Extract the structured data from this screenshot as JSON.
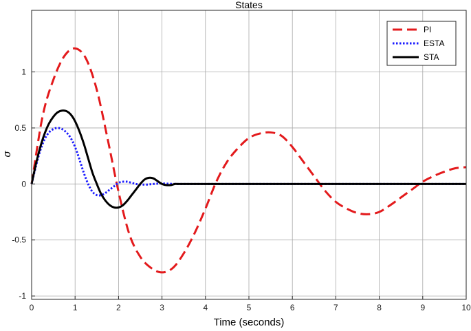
{
  "chart_data": {
    "type": "line",
    "title": "States",
    "xlabel": "Time (seconds)",
    "ylabel": "σ",
    "xlim": [
      0,
      10
    ],
    "ylim": [
      -1.03,
      1.55
    ],
    "xticks": [
      0,
      1,
      2,
      3,
      4,
      5,
      6,
      7,
      8,
      9,
      10
    ],
    "yticks": [
      -1,
      -0.5,
      0,
      0.5,
      1
    ],
    "xtick_labels": [
      "0",
      "1",
      "2",
      "3",
      "4",
      "5",
      "6",
      "7",
      "8",
      "9",
      "10"
    ],
    "ytick_labels": [
      "-1",
      "-0.5",
      "0",
      "0.5",
      "1"
    ],
    "grid": true,
    "legend_position": "top-right",
    "series": [
      {
        "name": "PI",
        "color": "#e31a1c",
        "style": "dashed",
        "x": [
          0,
          0.25,
          0.5,
          0.75,
          1.0,
          1.25,
          1.5,
          1.75,
          2.0,
          2.25,
          2.5,
          2.75,
          3.0,
          3.25,
          3.5,
          3.75,
          4.0,
          4.25,
          4.5,
          4.75,
          5.0,
          5.25,
          5.5,
          5.75,
          6.0,
          6.25,
          6.5,
          6.75,
          7.0,
          7.25,
          7.5,
          7.75,
          8.0,
          8.25,
          8.5,
          8.75,
          9.0,
          9.25,
          9.5,
          9.75,
          10.0
        ],
        "y": [
          0,
          0.6,
          0.93,
          1.14,
          1.21,
          1.12,
          0.84,
          0.4,
          -0.07,
          -0.45,
          -0.65,
          -0.75,
          -0.79,
          -0.75,
          -0.62,
          -0.44,
          -0.22,
          0.02,
          0.2,
          0.32,
          0.41,
          0.45,
          0.46,
          0.43,
          0.33,
          0.2,
          0.07,
          -0.06,
          -0.16,
          -0.22,
          -0.26,
          -0.27,
          -0.25,
          -0.19,
          -0.12,
          -0.05,
          0.02,
          0.07,
          0.11,
          0.14,
          0.15
        ]
      },
      {
        "name": "ESTA",
        "color": "#1a1aff",
        "style": "dotted",
        "x": [
          0,
          0.1,
          0.2,
          0.3,
          0.4,
          0.5,
          0.6,
          0.7,
          0.8,
          0.9,
          1.0,
          1.1,
          1.2,
          1.3,
          1.4,
          1.5,
          1.6,
          1.7,
          1.8,
          1.9,
          2.0,
          2.1,
          2.2,
          2.3,
          2.4,
          2.5,
          2.6,
          2.7,
          2.8,
          2.9,
          3.0,
          3.1,
          3.2,
          3.3,
          3.4,
          4.0,
          6.0,
          8.0,
          10.0
        ],
        "y": [
          0,
          0.16,
          0.3,
          0.4,
          0.46,
          0.49,
          0.5,
          0.49,
          0.46,
          0.41,
          0.33,
          0.22,
          0.1,
          0.0,
          -0.07,
          -0.1,
          -0.1,
          -0.08,
          -0.05,
          -0.02,
          0.01,
          0.02,
          0.02,
          0.01,
          0.0,
          -0.005,
          -0.006,
          -0.004,
          0.0,
          0.003,
          0.004,
          0.003,
          0.001,
          0.0,
          0.0,
          0.0,
          0.0,
          0.0,
          0.0
        ]
      },
      {
        "name": "STA",
        "color": "#000000",
        "style": "solid",
        "x": [
          0,
          0.1,
          0.2,
          0.3,
          0.4,
          0.5,
          0.6,
          0.7,
          0.8,
          0.9,
          1.0,
          1.1,
          1.2,
          1.3,
          1.4,
          1.5,
          1.6,
          1.7,
          1.8,
          1.9,
          2.0,
          2.1,
          2.2,
          2.3,
          2.4,
          2.5,
          2.6,
          2.7,
          2.8,
          2.9,
          3.0,
          3.1,
          3.2,
          3.3,
          3.4,
          4.0,
          6.0,
          8.0,
          10.0
        ],
        "y": [
          0,
          0.18,
          0.33,
          0.45,
          0.54,
          0.6,
          0.64,
          0.655,
          0.65,
          0.62,
          0.56,
          0.47,
          0.36,
          0.23,
          0.1,
          0.0,
          -0.09,
          -0.15,
          -0.19,
          -0.21,
          -0.21,
          -0.19,
          -0.15,
          -0.1,
          -0.05,
          0.0,
          0.04,
          0.055,
          0.05,
          0.025,
          0.0,
          -0.01,
          -0.01,
          0.0,
          0.0,
          0.0,
          0.0,
          0.0,
          0.0
        ]
      }
    ]
  }
}
